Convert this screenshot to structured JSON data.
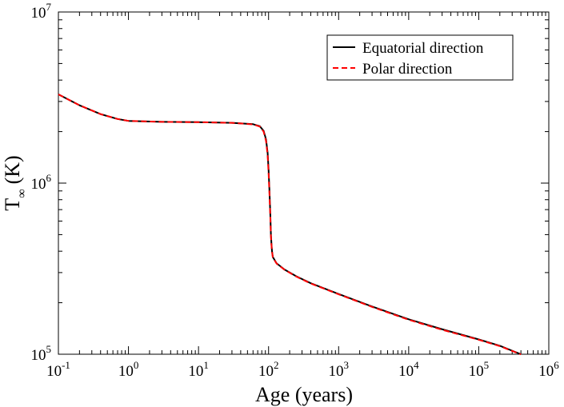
{
  "chart_data": {
    "type": "line",
    "title": "",
    "xlabel": "Age (years)",
    "ylabel": {
      "main": "T",
      "sub": "∞",
      "unit": "(K)"
    },
    "xscale": "log",
    "yscale": "log",
    "xlim": [
      0.1,
      1000000
    ],
    "ylim": [
      100000,
      10000000
    ],
    "grid": false,
    "legend_position": "top-right",
    "x_ticks": [
      {
        "value": 0.1,
        "base": "10",
        "exp": "-1"
      },
      {
        "value": 1,
        "base": "10",
        "exp": "0"
      },
      {
        "value": 10,
        "base": "10",
        "exp": "1"
      },
      {
        "value": 100,
        "base": "10",
        "exp": "2"
      },
      {
        "value": 1000,
        "base": "10",
        "exp": "3"
      },
      {
        "value": 10000,
        "base": "10",
        "exp": "4"
      },
      {
        "value": 100000,
        "base": "10",
        "exp": "5"
      },
      {
        "value": 1000000,
        "base": "10",
        "exp": "6"
      }
    ],
    "y_ticks": [
      {
        "value": 100000,
        "base": "10",
        "exp": "5"
      },
      {
        "value": 1000000,
        "base": "10",
        "exp": "6"
      },
      {
        "value": 10000000,
        "base": "10",
        "exp": "7"
      }
    ],
    "series": [
      {
        "name": "Equatorial direction",
        "color": "#000000",
        "dash": "solid",
        "x": [
          0.1,
          0.2,
          0.4,
          0.7,
          1,
          3,
          10,
          30,
          60,
          75,
          85,
          92,
          97,
          100,
          103,
          106,
          108,
          110,
          112,
          115,
          130,
          170,
          250,
          400,
          1000,
          3000,
          10000,
          30000,
          100000,
          200000,
          400000
        ],
        "y": [
          3300000,
          2850000,
          2530000,
          2370000,
          2310000,
          2280000,
          2270000,
          2250000,
          2210000,
          2150000,
          2020000,
          1800000,
          1500000,
          1200000,
          900000,
          650000,
          500000,
          440000,
          400000,
          370000,
          340000,
          312000,
          285000,
          260000,
          225000,
          190000,
          160000,
          140000,
          122000,
          112000,
          100000
        ]
      },
      {
        "name": "Polar direction",
        "color": "#ff0000",
        "dash": "dashed",
        "x": [
          0.1,
          0.2,
          0.4,
          0.7,
          1,
          3,
          10,
          30,
          60,
          75,
          85,
          92,
          97,
          100,
          103,
          106,
          108,
          110,
          112,
          115,
          130,
          170,
          250,
          400,
          1000,
          3000,
          10000,
          30000,
          100000,
          200000,
          400000
        ],
        "y": [
          3300000,
          2850000,
          2530000,
          2370000,
          2310000,
          2280000,
          2270000,
          2250000,
          2205000,
          2140000,
          2000000,
          1760000,
          1450000,
          1150000,
          860000,
          630000,
          490000,
          435000,
          398000,
          368000,
          339000,
          311000,
          284000,
          259000,
          224000,
          189000,
          159000,
          139000,
          121500,
          111500,
          99800
        ]
      }
    ]
  }
}
